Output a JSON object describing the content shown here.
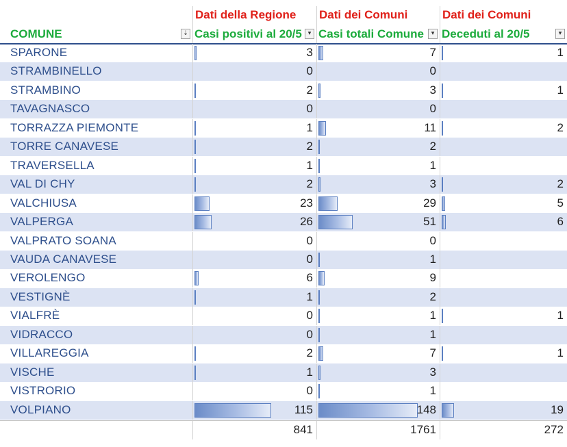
{
  "source_headers": {
    "col2": "Dati della Regione",
    "col3": "Dati dei Comuni",
    "col4": "Dati dei Comuni"
  },
  "column_headers": {
    "comune": "COMUNE",
    "casi_positivi": "Casi positivi al 20/5",
    "casi_totali": "Casi totali Comune",
    "deceduti": "Deceduti al 20/5"
  },
  "filter_icons": {
    "comune": "sort-filter-icon",
    "other": "dropdown-filter-icon",
    "comune_glyph": "⇣",
    "other_glyph": "▾"
  },
  "bar_scale_max": {
    "casi_positivi": 115,
    "casi_totali": 148,
    "deceduti": 19
  },
  "rows": [
    {
      "comune": "SPARONE",
      "casi_positivi": "3",
      "casi_totali": "7",
      "deceduti": "1"
    },
    {
      "comune": "STRAMBINELLO",
      "casi_positivi": "0",
      "casi_totali": "0",
      "deceduti": ""
    },
    {
      "comune": "STRAMBINO",
      "casi_positivi": "2",
      "casi_totali": "3",
      "deceduti": "1"
    },
    {
      "comune": "TAVAGNASCO",
      "casi_positivi": "0",
      "casi_totali": "0",
      "deceduti": ""
    },
    {
      "comune": "TORRAZZA PIEMONTE",
      "casi_positivi": "1",
      "casi_totali": "11",
      "deceduti": "2"
    },
    {
      "comune": "TORRE CANAVESE",
      "casi_positivi": "2",
      "casi_totali": "2",
      "deceduti": ""
    },
    {
      "comune": "TRAVERSELLA",
      "casi_positivi": "1",
      "casi_totali": "1",
      "deceduti": ""
    },
    {
      "comune": "VAL DI CHY",
      "casi_positivi": "2",
      "casi_totali": "3",
      "deceduti": "2"
    },
    {
      "comune": "VALCHIUSA",
      "casi_positivi": "23",
      "casi_totali": "29",
      "deceduti": "5"
    },
    {
      "comune": "VALPERGA",
      "casi_positivi": "26",
      "casi_totali": "51",
      "deceduti": "6"
    },
    {
      "comune": "VALPRATO SOANA",
      "casi_positivi": "0",
      "casi_totali": "0",
      "deceduti": ""
    },
    {
      "comune": "VAUDA CANAVESE",
      "casi_positivi": "0",
      "casi_totali": "1",
      "deceduti": ""
    },
    {
      "comune": "VEROLENGO",
      "casi_positivi": "6",
      "casi_totali": "9",
      "deceduti": ""
    },
    {
      "comune": "VESTIGNÈ",
      "casi_positivi": "1",
      "casi_totali": "2",
      "deceduti": ""
    },
    {
      "comune": "VIALFRÈ",
      "casi_positivi": "0",
      "casi_totali": "1",
      "deceduti": "1"
    },
    {
      "comune": "VIDRACCO",
      "casi_positivi": "0",
      "casi_totali": "1",
      "deceduti": ""
    },
    {
      "comune": "VILLAREGGIA",
      "casi_positivi": "2",
      "casi_totali": "7",
      "deceduti": "1"
    },
    {
      "comune": "VISCHE",
      "casi_positivi": "1",
      "casi_totali": "3",
      "deceduti": ""
    },
    {
      "comune": "VISTRORIO",
      "casi_positivi": "0",
      "casi_totali": "1",
      "deceduti": ""
    },
    {
      "comune": "VOLPIANO",
      "casi_positivi": "115",
      "casi_totali": "148",
      "deceduti": "19"
    }
  ],
  "totals": {
    "casi_positivi": "841",
    "casi_totali": "1761",
    "deceduti": "272"
  },
  "colors": {
    "source_header": "#e0211a",
    "column_header": "#1cab3c",
    "comune_text": "#2e4f8c",
    "band": "#dce3f3",
    "data_bar": "#6b8cc8"
  }
}
